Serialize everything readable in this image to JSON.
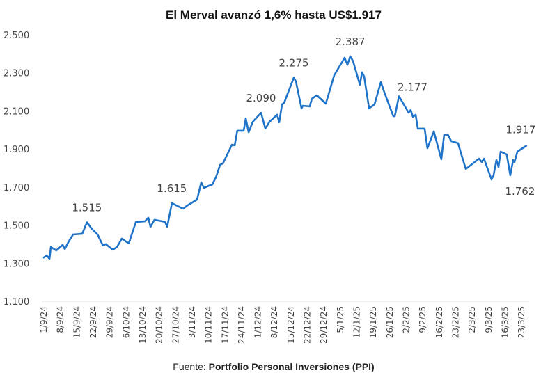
{
  "chart_data": {
    "type": "line",
    "title": "El Merval avanzó 1,6% hasta US$1.917",
    "source_prefix": "Fuente: ",
    "source_name": "Portfolio Personal Inversiones (PPI)",
    "xlabel": "",
    "ylabel": "",
    "ylim": [
      1100,
      2500
    ],
    "grid": false,
    "line_color": "#1f73c9",
    "y_ticks": [
      {
        "value": 2500,
        "label": "2.500"
      },
      {
        "value": 2300,
        "label": "2.300"
      },
      {
        "value": 2100,
        "label": "2.100"
      },
      {
        "value": 1900,
        "label": "1.900"
      },
      {
        "value": 1700,
        "label": "1.700"
      },
      {
        "value": 1500,
        "label": "1.500"
      },
      {
        "value": 1300,
        "label": "1.300"
      },
      {
        "value": 1100,
        "label": "1.100"
      }
    ],
    "x_start_date": "1/9/24",
    "x_tick_labels": [
      "1/9/24",
      "8/9/24",
      "15/9/24",
      "22/9/24",
      "29/9/24",
      "6/10/24",
      "13/10/24",
      "20/10/24",
      "27/10/24",
      "3/11/24",
      "10/11/24",
      "17/11/24",
      "24/11/24",
      "1/12/24",
      "8/12/24",
      "15/12/24",
      "22/12/24",
      "29/12/24",
      "5/1/25",
      "12/1/25",
      "19/1/25",
      "26/1/25",
      "2/2/25",
      "9/2/25",
      "16/2/25",
      "23/2/25",
      "2/3/25",
      "9/3/25",
      "16/3/25",
      "23/3/25"
    ],
    "x_tick_step_days": 7,
    "series": [
      {
        "name": "Merval (US$)",
        "days": [
          0,
          1.2,
          2.4,
          3,
          5.3,
          8,
          8.9,
          10.4,
          12.4,
          16.3,
          18.3,
          20.4,
          22.8,
          25.1,
          26.3,
          29.3,
          31.1,
          33.1,
          36.1,
          39.1,
          42.9,
          44.4,
          45.3,
          47,
          51.5,
          52.4,
          54.4,
          59.2,
          60.7,
          65.1,
          66.9,
          68,
          71.6,
          73.1,
          74.9,
          76.1,
          79.9,
          81.1,
          82.2,
          84.9,
          85.8,
          87,
          88.8,
          92.3,
          94.1,
          95.9,
          99.1,
          100,
          101.2,
          102.1,
          106.2,
          107.1,
          109.5,
          110.1,
          113,
          113.9,
          116,
          119.8,
          123.4,
          127.8,
          129,
          130.2,
          131.4,
          134.3,
          135.2,
          136.1,
          138.2,
          140.5,
          143.2,
          144.7,
          148.5,
          149.1,
          150.9,
          155,
          155.9,
          156.8,
          158,
          158.9,
          161.8,
          163,
          165.7,
          168.9,
          170.1,
          171.6,
          173.1,
          176,
          177.5,
          179.3,
          184.9,
          186.1,
          187,
          190.2,
          191.1,
          192.3,
          193.2,
          194.1,
          196.7,
          198.2,
          199.4,
          200,
          201.2,
          205
        ],
        "values": [
          1330,
          1341,
          1323,
          1385,
          1367,
          1396,
          1374,
          1411,
          1451,
          1455,
          1515,
          1480,
          1451,
          1393,
          1400,
          1371,
          1385,
          1429,
          1404,
          1517,
          1520,
          1539,
          1491,
          1528,
          1517,
          1491,
          1615,
          1586,
          1601,
          1634,
          1725,
          1696,
          1714,
          1751,
          1817,
          1824,
          1922,
          1919,
          1996,
          1996,
          2061,
          1988,
          2043,
          2090,
          2007,
          2043,
          2080,
          2040,
          2134,
          2142,
          2275,
          2255,
          2113,
          2127,
          2124,
          2164,
          2182,
          2138,
          2288,
          2379,
          2343,
          2387,
          2361,
          2237,
          2303,
          2281,
          2113,
          2135,
          2251,
          2197,
          2072,
          2072,
          2177,
          2091,
          2105,
          2069,
          2080,
          2007,
          2007,
          1904,
          1992,
          1846,
          1974,
          1977,
          1941,
          1930,
          1868,
          1795,
          1849,
          1831,
          1849,
          1740,
          1762,
          1842,
          1806,
          1886,
          1871,
          1762,
          1842,
          1831,
          1886,
          1917
        ]
      }
    ],
    "annotations": [
      {
        "label": "1.515",
        "day": 18.3,
        "value": 1515,
        "placement": "above"
      },
      {
        "label": "1.615",
        "day": 54.4,
        "value": 1615,
        "placement": "above"
      },
      {
        "label": "2.090",
        "day": 92.3,
        "value": 2090,
        "placement": "above"
      },
      {
        "label": "2.275",
        "day": 106.2,
        "value": 2275,
        "placement": "above"
      },
      {
        "label": "2.387",
        "day": 130.2,
        "value": 2387,
        "placement": "above"
      },
      {
        "label": "2.177",
        "day": 150.9,
        "value": 2177,
        "placement": "above-right"
      },
      {
        "label": "1.762",
        "day": 198.2,
        "value": 1762,
        "placement": "below"
      },
      {
        "label": "1.917",
        "day": 205,
        "value": 1917,
        "placement": "above"
      }
    ]
  }
}
